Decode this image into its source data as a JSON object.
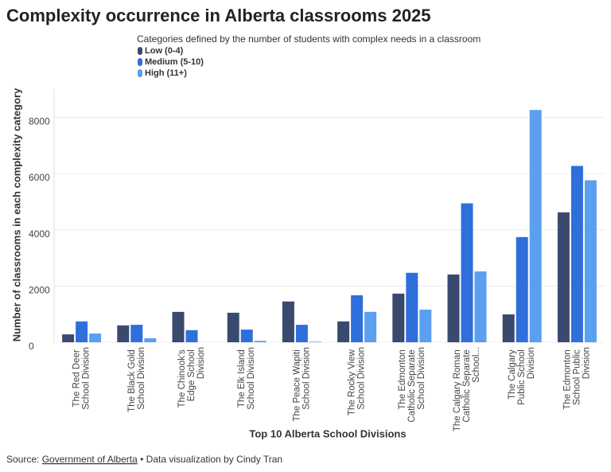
{
  "chart_data": {
    "type": "bar",
    "title": "Complexity occurrence in Alberta classrooms 2025",
    "subtitle": "Categories defined by the number of students with complex needs in a classroom",
    "x_label": "Top 10 Alberta School Divisions",
    "y_label": "Number of classrooms in each complexity category",
    "source": {
      "prefix": "Source:",
      "link": "Government of Alberta",
      "suffix": "• Data visualization by Cindy Tran"
    },
    "categories": [
      "The Red Deer School Division",
      "The Black Gold School Division",
      "The Chinook's Edge School Division",
      "The Elk Island School Division",
      "The Peace Wapiti School Division",
      "The Rocky View School Division",
      "The Edmonton Catholic Separate School Division",
      "The Calgary Roman Catholic Separate School...",
      "The Calgary Public School Division",
      "The Edmonton School Public Division"
    ],
    "series": [
      {
        "name": "Low (0-4)",
        "color": "#3a4a6e",
        "values": [
          280,
          600,
          1080,
          1050,
          1450,
          740,
          1730,
          2410,
          990,
          4620
        ]
      },
      {
        "name": "Medium (5-10)",
        "color": "#2f6fdc",
        "values": [
          740,
          620,
          430,
          450,
          620,
          1670,
          2470,
          4940,
          3740,
          6270
        ]
      },
      {
        "name": "High (11+)",
        "color": "#5b9ff0",
        "values": [
          310,
          140,
          0,
          50,
          20,
          1080,
          1160,
          2520,
          8260,
          5760
        ]
      }
    ],
    "ylim": [
      0,
      9000
    ],
    "yticks": [
      0,
      2000,
      4000,
      6000,
      8000
    ],
    "grid": true
  }
}
